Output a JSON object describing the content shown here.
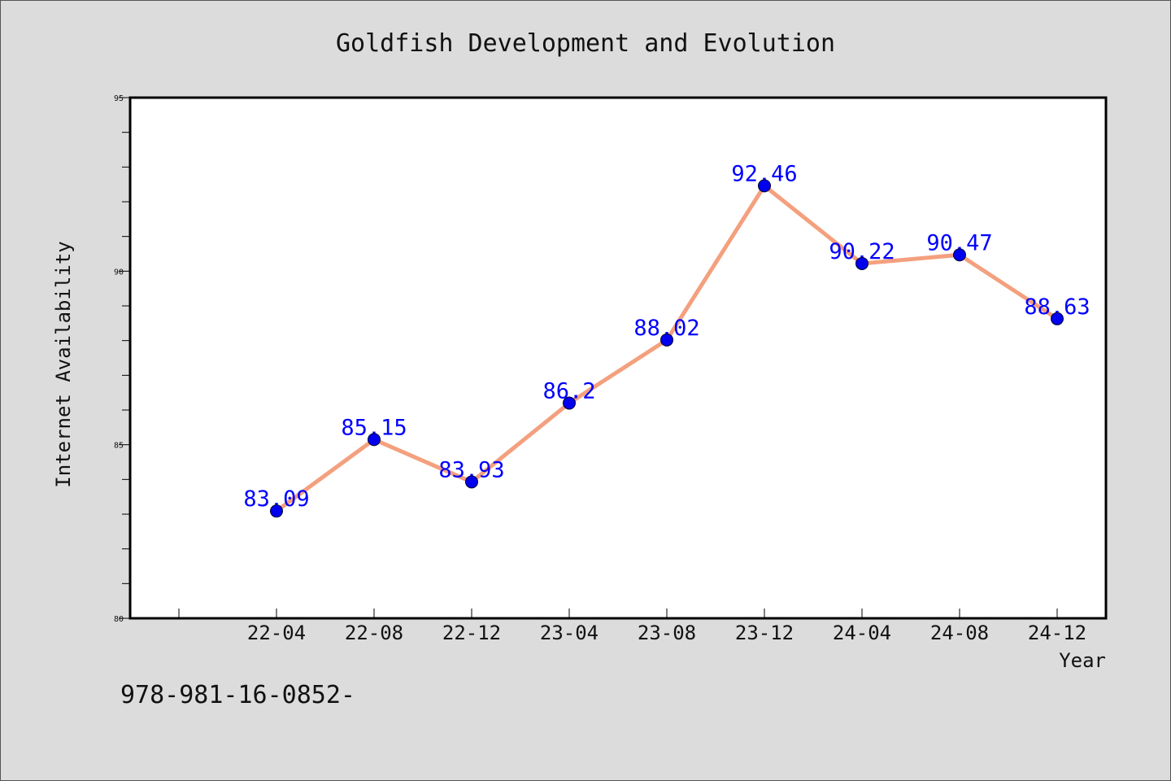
{
  "chart_data": {
    "type": "line",
    "title": "Goldfish Development and Evolution",
    "xlabel": "Year",
    "ylabel": "Internet Availability",
    "categories": [
      "22-04",
      "22-08",
      "22-12",
      "23-04",
      "23-08",
      "23-12",
      "24-04",
      "24-08",
      "24-12"
    ],
    "series": [
      {
        "values": [
          83.09,
          85.15,
          83.93,
          86.2,
          88.02,
          92.46,
          90.22,
          90.47,
          88.63
        ]
      }
    ],
    "value_labels": [
      "83.09",
      "85.15",
      "83.93",
      "86.2",
      "88.02",
      "92.46",
      "90.22",
      "90.47",
      "88.63"
    ],
    "ylim": [
      80,
      95
    ],
    "yticks": [
      80,
      85,
      90,
      95
    ],
    "grid": false,
    "legend": "none",
    "colors": {
      "line": "#f4a07e",
      "marker": "#0000ee",
      "label": "#0000ff",
      "plot_bg": "#ffffff",
      "page_bg": "#dcdcdc"
    }
  },
  "footnote": "978-981-16-0852-"
}
